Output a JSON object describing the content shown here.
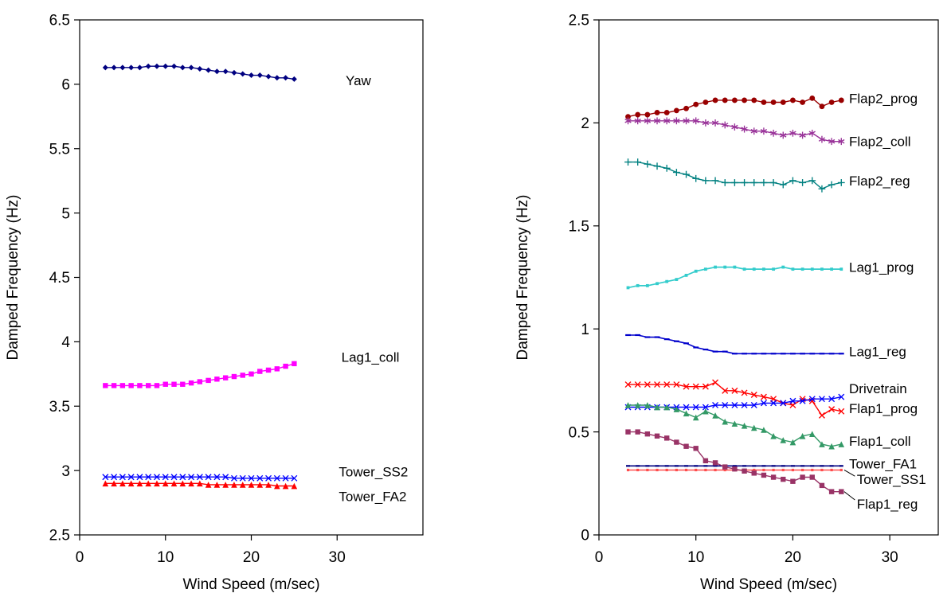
{
  "page": {
    "background": "#ffffff",
    "axis_color": "#000000"
  },
  "chart_data": [
    {
      "type": "line",
      "title": "",
      "xlabel": "Wind Speed (m/sec)",
      "ylabel": "Damped Frequency (Hz)",
      "xlim": [
        0,
        40
      ],
      "ylim": [
        2.5,
        6.5
      ],
      "xticks": [
        0,
        10,
        20,
        30
      ],
      "yticks": [
        2.5,
        3,
        3.5,
        4,
        4.5,
        5,
        5.5,
        6,
        6.5
      ],
      "grid": false,
      "legend_position": "inline-labels",
      "x": [
        3,
        4,
        5,
        6,
        7,
        8,
        9,
        10,
        11,
        12,
        13,
        14,
        15,
        16,
        17,
        18,
        19,
        20,
        21,
        22,
        23,
        24,
        25
      ],
      "series": [
        {
          "name": "Yaw",
          "color": "#000080",
          "marker": "diamond",
          "marker_size": 3.5,
          "line": true,
          "values": [
            6.13,
            6.13,
            6.13,
            6.13,
            6.13,
            6.14,
            6.14,
            6.14,
            6.14,
            6.13,
            6.13,
            6.12,
            6.11,
            6.1,
            6.1,
            6.09,
            6.08,
            6.07,
            6.07,
            6.06,
            6.05,
            6.05,
            6.04
          ],
          "label": {
            "text": "Yaw",
            "x": 31.0,
            "y": 6.03
          }
        },
        {
          "name": "Lag1_coll",
          "color": "#FF00FF",
          "marker": "square",
          "marker_size": 3.2,
          "line": true,
          "values": [
            3.66,
            3.66,
            3.66,
            3.66,
            3.66,
            3.66,
            3.66,
            3.67,
            3.67,
            3.67,
            3.68,
            3.69,
            3.7,
            3.71,
            3.72,
            3.73,
            3.74,
            3.75,
            3.77,
            3.78,
            3.79,
            3.81,
            3.83
          ],
          "label": {
            "text": "Lag1_coll",
            "x": 30.5,
            "y": 3.88
          }
        },
        {
          "name": "Tower_SS2",
          "color": "#0000FF",
          "marker": "x",
          "marker_size": 3.5,
          "line": true,
          "values": [
            2.95,
            2.95,
            2.95,
            2.95,
            2.95,
            2.95,
            2.95,
            2.95,
            2.95,
            2.95,
            2.95,
            2.95,
            2.95,
            2.95,
            2.95,
            2.94,
            2.94,
            2.94,
            2.94,
            2.94,
            2.94,
            2.94,
            2.94
          ],
          "label": {
            "text": "Tower_SS2",
            "x": 30.2,
            "y": 2.99
          }
        },
        {
          "name": "Tower_FA2",
          "color": "#FF0000",
          "marker": "triangle",
          "marker_size": 3.8,
          "line": true,
          "values": [
            2.9,
            2.9,
            2.9,
            2.9,
            2.9,
            2.9,
            2.9,
            2.9,
            2.9,
            2.9,
            2.9,
            2.9,
            2.89,
            2.89,
            2.89,
            2.89,
            2.89,
            2.89,
            2.89,
            2.89,
            2.88,
            2.88,
            2.88
          ],
          "label": {
            "text": "Tower_FA2",
            "x": 30.2,
            "y": 2.8
          }
        }
      ]
    },
    {
      "type": "line",
      "title": "",
      "xlabel": "Wind Speed (m/sec)",
      "ylabel": "Damped Frequency (Hz)",
      "xlim": [
        0,
        35
      ],
      "ylim": [
        0,
        2.5
      ],
      "xticks": [
        0,
        10,
        20,
        30
      ],
      "yticks": [
        0,
        0.5,
        1,
        1.5,
        2,
        2.5
      ],
      "grid": false,
      "legend_position": "inline-labels",
      "x": [
        3,
        4,
        5,
        6,
        7,
        8,
        9,
        10,
        11,
        12,
        13,
        14,
        15,
        16,
        17,
        18,
        19,
        20,
        21,
        22,
        23,
        24,
        25
      ],
      "series": [
        {
          "name": "Flap2_prog",
          "color": "#990000",
          "marker": "circle",
          "marker_size": 3.4,
          "line": true,
          "values": [
            2.03,
            2.04,
            2.04,
            2.05,
            2.05,
            2.06,
            2.07,
            2.09,
            2.1,
            2.11,
            2.11,
            2.11,
            2.11,
            2.11,
            2.1,
            2.1,
            2.1,
            2.11,
            2.1,
            2.12,
            2.08,
            2.1,
            2.11
          ],
          "label": {
            "text": "Flap2_prog",
            "x": 25.8,
            "y": 2.12
          }
        },
        {
          "name": "Flap2_coll",
          "color": "#993399",
          "marker": "asterisk",
          "marker_size": 4.4,
          "line": true,
          "values": [
            2.01,
            2.01,
            2.01,
            2.01,
            2.01,
            2.01,
            2.01,
            2.01,
            2.0,
            2.0,
            1.99,
            1.98,
            1.97,
            1.96,
            1.96,
            1.95,
            1.94,
            1.95,
            1.94,
            1.95,
            1.92,
            1.91,
            1.91
          ],
          "label": {
            "text": "Flap2_coll",
            "x": 25.8,
            "y": 1.91
          }
        },
        {
          "name": "Flap2_reg",
          "color": "#008080",
          "marker": "plus",
          "marker_size": 4.4,
          "line": true,
          "values": [
            1.81,
            1.81,
            1.8,
            1.79,
            1.78,
            1.76,
            1.75,
            1.73,
            1.72,
            1.72,
            1.71,
            1.71,
            1.71,
            1.71,
            1.71,
            1.71,
            1.7,
            1.72,
            1.71,
            1.72,
            1.68,
            1.7,
            1.71
          ],
          "label": {
            "text": "Flap2_reg",
            "x": 25.8,
            "y": 1.72
          }
        },
        {
          "name": "Lag1_prog",
          "color": "#33CCCC",
          "marker": "dot",
          "marker_size": 1.9,
          "line": true,
          "line_width": 1.7,
          "values": [
            1.2,
            1.21,
            1.21,
            1.22,
            1.23,
            1.24,
            1.26,
            1.28,
            1.29,
            1.3,
            1.3,
            1.3,
            1.29,
            1.29,
            1.29,
            1.29,
            1.3,
            1.29,
            1.29,
            1.29,
            1.29,
            1.29,
            1.29
          ],
          "label": {
            "text": "Lag1_prog",
            "x": 25.8,
            "y": 1.3
          }
        },
        {
          "name": "Lag1_reg",
          "color": "#0000CC",
          "marker": "dash",
          "marker_size": 3.4,
          "line": true,
          "line_width": 1.6,
          "values": [
            0.97,
            0.97,
            0.96,
            0.96,
            0.95,
            0.94,
            0.93,
            0.91,
            0.9,
            0.89,
            0.89,
            0.88,
            0.88,
            0.88,
            0.88,
            0.88,
            0.88,
            0.88,
            0.88,
            0.88,
            0.88,
            0.88,
            0.88
          ],
          "label": {
            "text": "Lag1_reg",
            "x": 25.8,
            "y": 0.89
          }
        },
        {
          "name": "Drivetrain",
          "color": "#FF0000",
          "marker": "x",
          "marker_size": 3.5,
          "line": true,
          "values": [
            0.73,
            0.73,
            0.73,
            0.73,
            0.73,
            0.73,
            0.72,
            0.72,
            0.72,
            0.74,
            0.7,
            0.7,
            0.69,
            0.68,
            0.67,
            0.66,
            0.64,
            0.63,
            0.66,
            0.65,
            0.58,
            0.61,
            0.6
          ],
          "label": {
            "text": "Drivetrain",
            "x": 25.8,
            "y": 0.71
          }
        },
        {
          "name": "Flap1_prog",
          "color": "#0000FF",
          "marker": "x",
          "marker_size": 3.5,
          "line": true,
          "values": [
            0.62,
            0.62,
            0.62,
            0.62,
            0.62,
            0.62,
            0.62,
            0.62,
            0.62,
            0.63,
            0.63,
            0.63,
            0.63,
            0.63,
            0.64,
            0.64,
            0.64,
            0.65,
            0.65,
            0.66,
            0.66,
            0.66,
            0.67
          ],
          "label": {
            "text": "Flap1_prog",
            "x": 25.8,
            "y": 0.615
          }
        },
        {
          "name": "Flap1_coll",
          "color": "#339966",
          "marker": "triangle",
          "marker_size": 3.8,
          "line": true,
          "values": [
            0.63,
            0.63,
            0.63,
            0.62,
            0.62,
            0.61,
            0.59,
            0.57,
            0.6,
            0.58,
            0.55,
            0.54,
            0.53,
            0.52,
            0.51,
            0.48,
            0.46,
            0.45,
            0.48,
            0.49,
            0.44,
            0.43,
            0.44
          ],
          "label": {
            "text": "Flap1_coll",
            "x": 25.8,
            "y": 0.455
          }
        },
        {
          "name": "Tower_FA1",
          "color": "#000080",
          "marker": "dash",
          "marker_size": 2.5,
          "line": true,
          "line_width": 1.6,
          "values": [
            0.335,
            0.335,
            0.335,
            0.335,
            0.335,
            0.335,
            0.335,
            0.335,
            0.335,
            0.335,
            0.335,
            0.335,
            0.335,
            0.335,
            0.335,
            0.335,
            0.335,
            0.335,
            0.335,
            0.335,
            0.335,
            0.335,
            0.335
          ],
          "label": {
            "text": "Tower_FA1",
            "x": 25.8,
            "y": 0.345
          }
        },
        {
          "name": "Tower_SS1",
          "color": "#FF4D4D",
          "marker": "dot",
          "marker_size": 1.6,
          "line": true,
          "line_width": 1.6,
          "values": [
            0.315,
            0.315,
            0.315,
            0.315,
            0.315,
            0.315,
            0.315,
            0.315,
            0.315,
            0.315,
            0.315,
            0.315,
            0.315,
            0.315,
            0.315,
            0.315,
            0.315,
            0.315,
            0.315,
            0.315,
            0.315,
            0.315,
            0.315
          ],
          "label": {
            "text": "Tower_SS1",
            "x": 26.6,
            "y": 0.27
          },
          "leader": [
            [
              26.4,
              0.285
            ],
            [
              25.3,
              0.315
            ]
          ]
        },
        {
          "name": "Flap1_reg",
          "color": "#993366",
          "marker": "square",
          "marker_size": 3.2,
          "line": true,
          "values": [
            0.5,
            0.5,
            0.49,
            0.48,
            0.47,
            0.45,
            0.43,
            0.42,
            0.36,
            0.35,
            0.33,
            0.32,
            0.31,
            0.3,
            0.29,
            0.28,
            0.27,
            0.26,
            0.28,
            0.28,
            0.24,
            0.21,
            0.21
          ],
          "label": {
            "text": "Flap1_reg",
            "x": 26.6,
            "y": 0.15
          },
          "leader": [
            [
              26.4,
              0.17
            ],
            [
              25.3,
              0.21
            ]
          ]
        }
      ]
    }
  ]
}
